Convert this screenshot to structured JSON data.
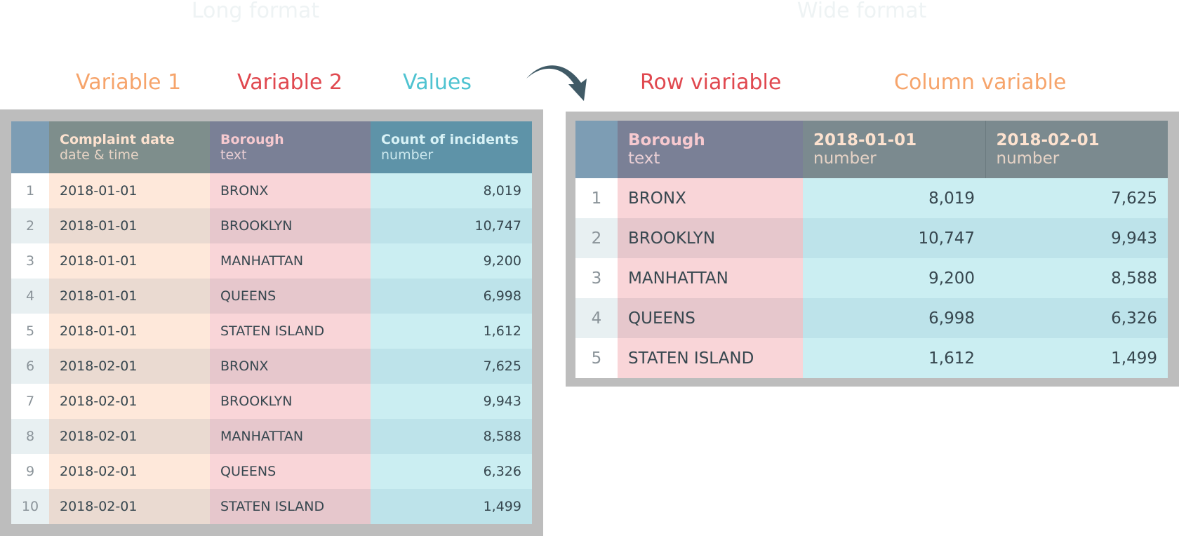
{
  "long": {
    "title": "Long format",
    "labels": {
      "var1": "Variable 1",
      "var2": "Variable 2",
      "values": "Values"
    },
    "headers": [
      {
        "title": "Complaint date",
        "type": "date & time"
      },
      {
        "title": "Borough",
        "type": "text"
      },
      {
        "title": "Count of incidents",
        "type": "number"
      }
    ],
    "rows": [
      {
        "idx": "1",
        "date": "2018-01-01",
        "borough": "BRONX",
        "count": "8,019"
      },
      {
        "idx": "2",
        "date": "2018-01-01",
        "borough": "BROOKLYN",
        "count": "10,747"
      },
      {
        "idx": "3",
        "date": "2018-01-01",
        "borough": "MANHATTAN",
        "count": "9,200"
      },
      {
        "idx": "4",
        "date": "2018-01-01",
        "borough": "QUEENS",
        "count": "6,998"
      },
      {
        "idx": "5",
        "date": "2018-01-01",
        "borough": "STATEN ISLAND",
        "count": "1,612"
      },
      {
        "idx": "6",
        "date": "2018-02-01",
        "borough": "BRONX",
        "count": "7,625"
      },
      {
        "idx": "7",
        "date": "2018-02-01",
        "borough": "BROOKLYN",
        "count": "9,943"
      },
      {
        "idx": "8",
        "date": "2018-02-01",
        "borough": "MANHATTAN",
        "count": "8,588"
      },
      {
        "idx": "9",
        "date": "2018-02-01",
        "borough": "QUEENS",
        "count": "6,326"
      },
      {
        "idx": "10",
        "date": "2018-02-01",
        "borough": "STATEN ISLAND",
        "count": "1,499"
      }
    ]
  },
  "wide": {
    "title": "Wide format",
    "labels": {
      "row": "Row viariable",
      "column": "Column variable"
    },
    "headers": [
      {
        "title": "Borough",
        "type": "text"
      },
      {
        "title": "2018-01-01",
        "type": "number"
      },
      {
        "title": "2018-02-01",
        "type": "number"
      }
    ],
    "rows": [
      {
        "idx": "1",
        "borough": "BRONX",
        "c1": "8,019",
        "c2": "7,625"
      },
      {
        "idx": "2",
        "borough": "BROOKLYN",
        "c1": "10,747",
        "c2": "9,943"
      },
      {
        "idx": "3",
        "borough": "MANHATTAN",
        "c1": "9,200",
        "c2": "8,588"
      },
      {
        "idx": "4",
        "borough": "QUEENS",
        "c1": "6,998",
        "c2": "6,326"
      },
      {
        "idx": "5",
        "borough": "STATEN ISLAND",
        "c1": "1,612",
        "c2": "1,499"
      }
    ]
  },
  "arrow_icon": "curved-arrow-right-icon",
  "colors": {
    "variable1": "#f6a46b",
    "variable2": "#e0484f",
    "values": "#4fc3d1",
    "frame": "#bdbdbd"
  }
}
